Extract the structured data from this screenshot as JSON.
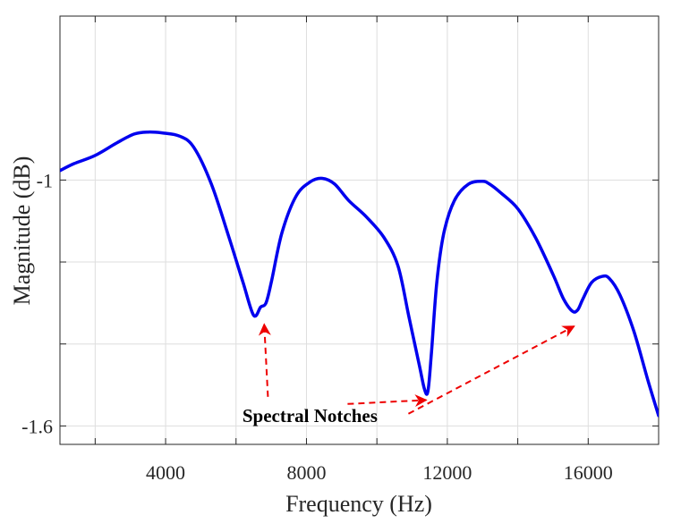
{
  "chart_data": {
    "type": "line",
    "xlabel": "Frequency (Hz)",
    "ylabel": "Magnitude (dB)",
    "xlim": [
      1000,
      18000
    ],
    "ylim": [
      -1.645,
      -0.6
    ],
    "x_ticks": [
      2000,
      4000,
      6000,
      8000,
      10000,
      12000,
      14000,
      16000
    ],
    "x_tick_labels": [
      "",
      "4000",
      "",
      "8000",
      "",
      "12000",
      "",
      "16000"
    ],
    "y_ticks": [
      -1.6,
      -1.4,
      -1.2,
      -1.0
    ],
    "y_tick_labels": [
      "-1.6",
      "",
      "",
      "-1"
    ],
    "grid": true,
    "colors": {
      "line": "#0000ee",
      "annotation": "#ee0000",
      "grid": "#dedede",
      "axes": "#262626"
    },
    "series": [
      {
        "x": [
          1000,
          1400,
          2000,
          2600,
          3100,
          3500,
          3900,
          4400,
          4800,
          5300,
          5800,
          6200,
          6500,
          6700,
          6850,
          7000,
          7300,
          7700,
          8100,
          8450,
          8800,
          9200,
          9700,
          10200,
          10600,
          10900,
          11200,
          11350,
          11450,
          11550,
          11700,
          11900,
          12200,
          12600,
          13000,
          13200,
          13500,
          14000,
          14500,
          15000,
          15300,
          15550,
          15700,
          15850,
          16100,
          16400,
          16600,
          16900,
          17300,
          17700,
          18000
        ],
        "y": [
          -0.977,
          -0.96,
          -0.94,
          -0.91,
          -0.888,
          -0.883,
          -0.885,
          -0.893,
          -0.92,
          -1.01,
          -1.14,
          -1.25,
          -1.33,
          -1.31,
          -1.3,
          -1.25,
          -1.13,
          -1.04,
          -1.005,
          -0.996,
          -1.01,
          -1.05,
          -1.09,
          -1.14,
          -1.21,
          -1.33,
          -1.45,
          -1.51,
          -1.515,
          -1.42,
          -1.25,
          -1.13,
          -1.05,
          -1.01,
          -1.003,
          -1.01,
          -1.03,
          -1.07,
          -1.14,
          -1.23,
          -1.29,
          -1.32,
          -1.317,
          -1.29,
          -1.25,
          -1.235,
          -1.24,
          -1.28,
          -1.37,
          -1.49,
          -1.575
        ]
      }
    ],
    "annotations": [
      {
        "text": "Spectral Notches",
        "x": 8100,
        "y": -1.59,
        "arrows_to": [
          [
            6800,
            -1.33
          ],
          [
            11400,
            -1.515
          ],
          [
            15600,
            -1.335
          ]
        ]
      }
    ]
  }
}
